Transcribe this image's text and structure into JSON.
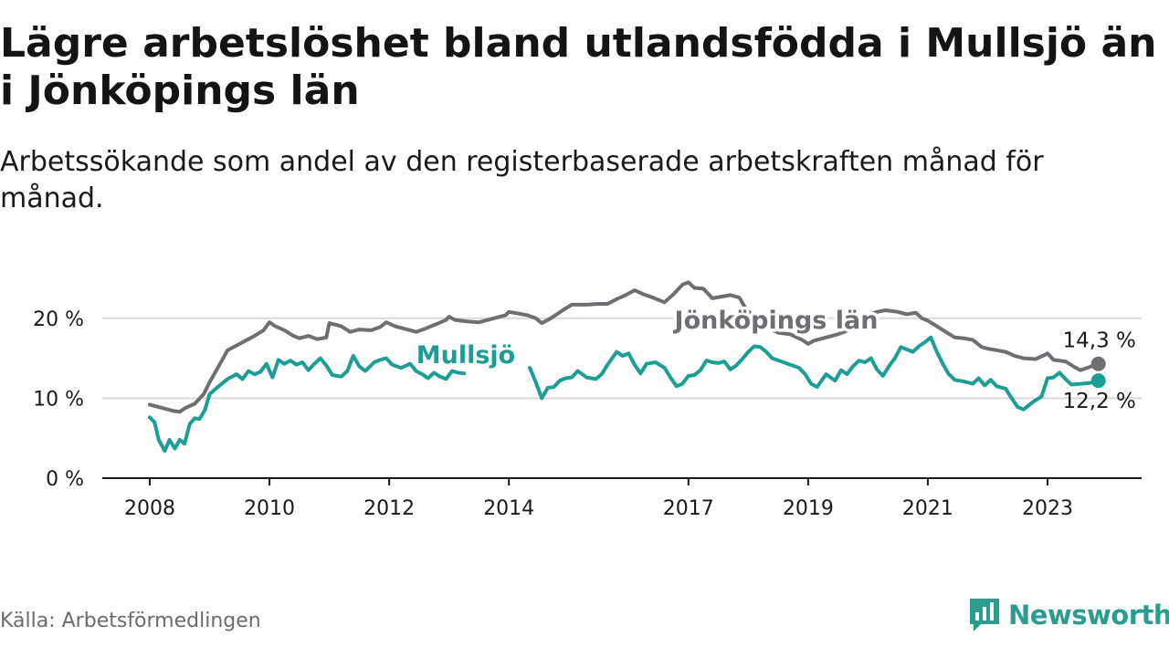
{
  "header": {
    "title": "Lägre arbetslöshet bland utlandsfödda i Mullsjö än i Jönköpings län",
    "subtitle": "Arbetssökande som andel av den registerbaserade arbetskraften månad för månad."
  },
  "footer": {
    "source": "Källa: Arbetsförmedlingen",
    "brand": "Newsworthy"
  },
  "colors": {
    "jonkoping": "#6e6e73",
    "mullsjo": "#1a9e95",
    "grid": "#d9d9d9",
    "axis": "#1a1a1a",
    "brand": "#2a9d8f"
  },
  "chart_data": {
    "type": "line",
    "title": "Lägre arbetslöshet bland utlandsfödda i Mullsjö än i Jönköpings län",
    "xlabel": "",
    "ylabel": "",
    "ylim": [
      0,
      25
    ],
    "xlim": [
      2007.9,
      2024.6
    ],
    "yticks": [
      {
        "value": 0,
        "label": "0 %"
      },
      {
        "value": 10,
        "label": "10 %"
      },
      {
        "value": 20,
        "label": "20 %"
      }
    ],
    "xticks": [
      {
        "value": 2008,
        "label": "2008"
      },
      {
        "value": 2010,
        "label": "2010"
      },
      {
        "value": 2012,
        "label": "2012"
      },
      {
        "value": 2014,
        "label": "2014"
      },
      {
        "value": 2017,
        "label": "2017"
      },
      {
        "value": 2019,
        "label": "2019"
      },
      {
        "value": 2021,
        "label": "2021"
      },
      {
        "value": 2023,
        "label": "2023"
      }
    ],
    "series": [
      {
        "name": "Jönköpings län",
        "label": "Jönköpings län",
        "end_label": "14,3 %",
        "last_value": 14.3,
        "points": [
          [
            2008.0,
            9.2
          ],
          [
            2008.2,
            8.8
          ],
          [
            2008.4,
            8.4
          ],
          [
            2008.5,
            8.3
          ],
          [
            2008.6,
            8.8
          ],
          [
            2008.75,
            9.3
          ],
          [
            2008.9,
            10.5
          ],
          [
            2009.0,
            12.0
          ],
          [
            2009.15,
            14.0
          ],
          [
            2009.3,
            16.0
          ],
          [
            2009.45,
            16.6
          ],
          [
            2009.6,
            17.2
          ],
          [
            2009.75,
            17.8
          ],
          [
            2009.9,
            18.5
          ],
          [
            2010.0,
            19.5
          ],
          [
            2010.1,
            19.0
          ],
          [
            2010.25,
            18.5
          ],
          [
            2010.4,
            17.8
          ],
          [
            2010.5,
            17.5
          ],
          [
            2010.65,
            17.8
          ],
          [
            2010.8,
            17.4
          ],
          [
            2010.95,
            17.6
          ],
          [
            2011.0,
            19.4
          ],
          [
            2011.2,
            19.0
          ],
          [
            2011.35,
            18.3
          ],
          [
            2011.5,
            18.6
          ],
          [
            2011.7,
            18.5
          ],
          [
            2011.85,
            18.9
          ],
          [
            2011.95,
            19.5
          ],
          [
            2012.1,
            19.0
          ],
          [
            2012.3,
            18.6
          ],
          [
            2012.45,
            18.3
          ],
          [
            2012.6,
            18.7
          ],
          [
            2012.8,
            19.3
          ],
          [
            2012.95,
            19.8
          ],
          [
            2013.0,
            20.2
          ],
          [
            2013.1,
            19.8
          ],
          [
            2013.3,
            19.6
          ],
          [
            2013.5,
            19.5
          ],
          [
            2013.75,
            20.0
          ],
          [
            2013.95,
            20.4
          ],
          [
            2014.0,
            20.8
          ],
          [
            2014.15,
            20.6
          ],
          [
            2014.3,
            20.4
          ],
          [
            2014.45,
            20.0
          ],
          [
            2014.55,
            19.4
          ],
          [
            2014.7,
            20.0
          ],
          [
            2014.9,
            21.0
          ],
          [
            2015.05,
            21.7
          ],
          [
            2015.3,
            21.7
          ],
          [
            2015.5,
            21.8
          ],
          [
            2015.65,
            21.8
          ],
          [
            2015.8,
            22.4
          ],
          [
            2015.95,
            22.9
          ],
          [
            2016.1,
            23.5
          ],
          [
            2016.25,
            23.0
          ],
          [
            2016.4,
            22.6
          ],
          [
            2016.6,
            22.0
          ],
          [
            2016.75,
            23.0
          ],
          [
            2016.9,
            24.2
          ],
          [
            2017.0,
            24.5
          ],
          [
            2017.1,
            23.8
          ],
          [
            2017.25,
            23.7
          ],
          [
            2017.4,
            22.5
          ],
          [
            2017.55,
            22.7
          ],
          [
            2017.7,
            22.9
          ],
          [
            2017.85,
            22.6
          ],
          [
            2017.95,
            21.3
          ],
          [
            2018.05,
            20.5
          ],
          [
            2018.15,
            19.6
          ],
          [
            2018.3,
            18.9
          ],
          [
            2018.5,
            18.2
          ],
          [
            2018.7,
            18.0
          ],
          [
            2018.9,
            17.3
          ],
          [
            2019.0,
            16.8
          ],
          [
            2019.1,
            17.2
          ],
          [
            2019.3,
            17.6
          ],
          [
            2019.5,
            18.0
          ],
          [
            2019.7,
            18.6
          ],
          [
            2019.9,
            19.6
          ],
          [
            2020.0,
            20.4
          ],
          [
            2020.15,
            20.8
          ],
          [
            2020.3,
            21.0
          ],
          [
            2020.5,
            20.8
          ],
          [
            2020.65,
            20.5
          ],
          [
            2020.8,
            20.7
          ],
          [
            2020.9,
            20.0
          ],
          [
            2021.0,
            19.7
          ],
          [
            2021.15,
            19.0
          ],
          [
            2021.3,
            18.3
          ],
          [
            2021.45,
            17.6
          ],
          [
            2021.6,
            17.5
          ],
          [
            2021.75,
            17.3
          ],
          [
            2021.9,
            16.4
          ],
          [
            2022.0,
            16.2
          ],
          [
            2022.15,
            16.0
          ],
          [
            2022.3,
            15.8
          ],
          [
            2022.45,
            15.3
          ],
          [
            2022.6,
            15.0
          ],
          [
            2022.8,
            14.9
          ],
          [
            2022.95,
            15.4
          ],
          [
            2023.0,
            15.6
          ],
          [
            2023.1,
            14.8
          ],
          [
            2023.3,
            14.6
          ],
          [
            2023.45,
            13.9
          ],
          [
            2023.55,
            13.5
          ],
          [
            2023.7,
            13.9
          ],
          [
            2023.85,
            14.3
          ]
        ]
      },
      {
        "name": "Mullsjö",
        "label": "Mullsjö",
        "end_label": "12,2 %",
        "last_value": 12.2,
        "segments": [
          [
            [
              2008.0,
              7.6
            ],
            [
              2008.08,
              7.0
            ],
            [
              2008.15,
              4.8
            ],
            [
              2008.25,
              3.4
            ],
            [
              2008.33,
              4.8
            ],
            [
              2008.42,
              3.7
            ],
            [
              2008.5,
              4.8
            ],
            [
              2008.58,
              4.3
            ],
            [
              2008.67,
              6.8
            ],
            [
              2008.75,
              7.5
            ],
            [
              2008.83,
              7.4
            ],
            [
              2008.92,
              8.5
            ],
            [
              2009.0,
              10.5
            ],
            [
              2009.15,
              11.5
            ],
            [
              2009.3,
              12.4
            ],
            [
              2009.45,
              13.0
            ],
            [
              2009.55,
              12.4
            ],
            [
              2009.65,
              13.4
            ],
            [
              2009.75,
              13.0
            ],
            [
              2009.85,
              13.3
            ],
            [
              2009.95,
              14.3
            ],
            [
              2010.05,
              12.6
            ],
            [
              2010.15,
              14.8
            ],
            [
              2010.25,
              14.3
            ],
            [
              2010.35,
              14.7
            ],
            [
              2010.45,
              14.2
            ],
            [
              2010.55,
              14.5
            ],
            [
              2010.65,
              13.5
            ],
            [
              2010.75,
              14.3
            ],
            [
              2010.85,
              15.0
            ],
            [
              2010.95,
              14.1
            ],
            [
              2011.05,
              12.9
            ],
            [
              2011.2,
              12.7
            ],
            [
              2011.3,
              13.4
            ],
            [
              2011.4,
              15.3
            ],
            [
              2011.5,
              14.0
            ],
            [
              2011.6,
              13.4
            ],
            [
              2011.75,
              14.5
            ],
            [
              2011.85,
              14.8
            ],
            [
              2011.95,
              15.0
            ],
            [
              2012.05,
              14.2
            ],
            [
              2012.2,
              13.8
            ],
            [
              2012.35,
              14.3
            ],
            [
              2012.45,
              13.4
            ],
            [
              2012.55,
              13.0
            ],
            [
              2012.65,
              12.5
            ],
            [
              2012.75,
              13.2
            ],
            [
              2012.85,
              12.7
            ],
            [
              2012.95,
              12.4
            ],
            [
              2013.05,
              13.4
            ],
            [
              2013.15,
              13.2
            ],
            [
              2013.25,
              13.1
            ]
          ],
          [
            [
              2014.35,
              13.8
            ],
            [
              2014.45,
              12.0
            ],
            [
              2014.55,
              10.0
            ],
            [
              2014.65,
              11.3
            ],
            [
              2014.75,
              11.4
            ],
            [
              2014.85,
              12.2
            ],
            [
              2014.95,
              12.5
            ],
            [
              2015.05,
              12.6
            ],
            [
              2015.15,
              13.4
            ],
            [
              2015.3,
              12.6
            ],
            [
              2015.45,
              12.4
            ],
            [
              2015.55,
              13.0
            ],
            [
              2015.65,
              14.2
            ],
            [
              2015.8,
              15.8
            ],
            [
              2015.9,
              15.3
            ],
            [
              2016.0,
              15.6
            ],
            [
              2016.1,
              14.2
            ],
            [
              2016.2,
              13.1
            ],
            [
              2016.3,
              14.3
            ],
            [
              2016.45,
              14.5
            ],
            [
              2016.6,
              13.8
            ],
            [
              2016.7,
              12.6
            ],
            [
              2016.8,
              11.5
            ],
            [
              2016.9,
              11.8
            ],
            [
              2017.0,
              12.8
            ],
            [
              2017.1,
              12.9
            ],
            [
              2017.2,
              13.5
            ],
            [
              2017.3,
              14.7
            ],
            [
              2017.4,
              14.5
            ],
            [
              2017.5,
              14.4
            ],
            [
              2017.6,
              14.6
            ],
            [
              2017.7,
              13.6
            ],
            [
              2017.8,
              14.1
            ],
            [
              2017.9,
              14.9
            ],
            [
              2018.0,
              15.8
            ],
            [
              2018.1,
              16.5
            ],
            [
              2018.2,
              16.4
            ],
            [
              2018.3,
              15.8
            ],
            [
              2018.4,
              15.0
            ],
            [
              2018.55,
              14.6
            ],
            [
              2018.7,
              14.2
            ],
            [
              2018.85,
              13.8
            ],
            [
              2018.95,
              13.0
            ],
            [
              2019.05,
              11.8
            ],
            [
              2019.15,
              11.4
            ],
            [
              2019.3,
              13.0
            ],
            [
              2019.45,
              12.2
            ],
            [
              2019.55,
              13.5
            ],
            [
              2019.65,
              13.0
            ],
            [
              2019.75,
              14.0
            ],
            [
              2019.85,
              14.7
            ],
            [
              2019.95,
              14.5
            ],
            [
              2020.05,
              15.0
            ],
            [
              2020.15,
              13.6
            ],
            [
              2020.25,
              12.8
            ],
            [
              2020.35,
              14.0
            ],
            [
              2020.45,
              15.0
            ],
            [
              2020.55,
              16.4
            ],
            [
              2020.65,
              16.1
            ],
            [
              2020.75,
              15.8
            ],
            [
              2020.85,
              16.5
            ],
            [
              2020.95,
              17.0
            ],
            [
              2021.05,
              17.6
            ],
            [
              2021.15,
              15.8
            ],
            [
              2021.25,
              14.3
            ],
            [
              2021.35,
              13.0
            ],
            [
              2021.45,
              12.3
            ],
            [
              2021.6,
              12.1
            ],
            [
              2021.75,
              11.8
            ],
            [
              2021.85,
              12.5
            ],
            [
              2021.95,
              11.6
            ],
            [
              2022.05,
              12.3
            ],
            [
              2022.15,
              11.5
            ],
            [
              2022.3,
              11.2
            ],
            [
              2022.4,
              10.0
            ],
            [
              2022.5,
              8.9
            ],
            [
              2022.6,
              8.6
            ],
            [
              2022.75,
              9.5
            ],
            [
              2022.9,
              10.2
            ],
            [
              2023.0,
              12.5
            ],
            [
              2023.1,
              12.6
            ],
            [
              2023.2,
              13.2
            ],
            [
              2023.3,
              12.4
            ],
            [
              2023.4,
              11.7
            ],
            [
              2023.55,
              11.8
            ],
            [
              2023.7,
              11.9
            ],
            [
              2023.85,
              12.2
            ]
          ]
        ]
      }
    ]
  }
}
